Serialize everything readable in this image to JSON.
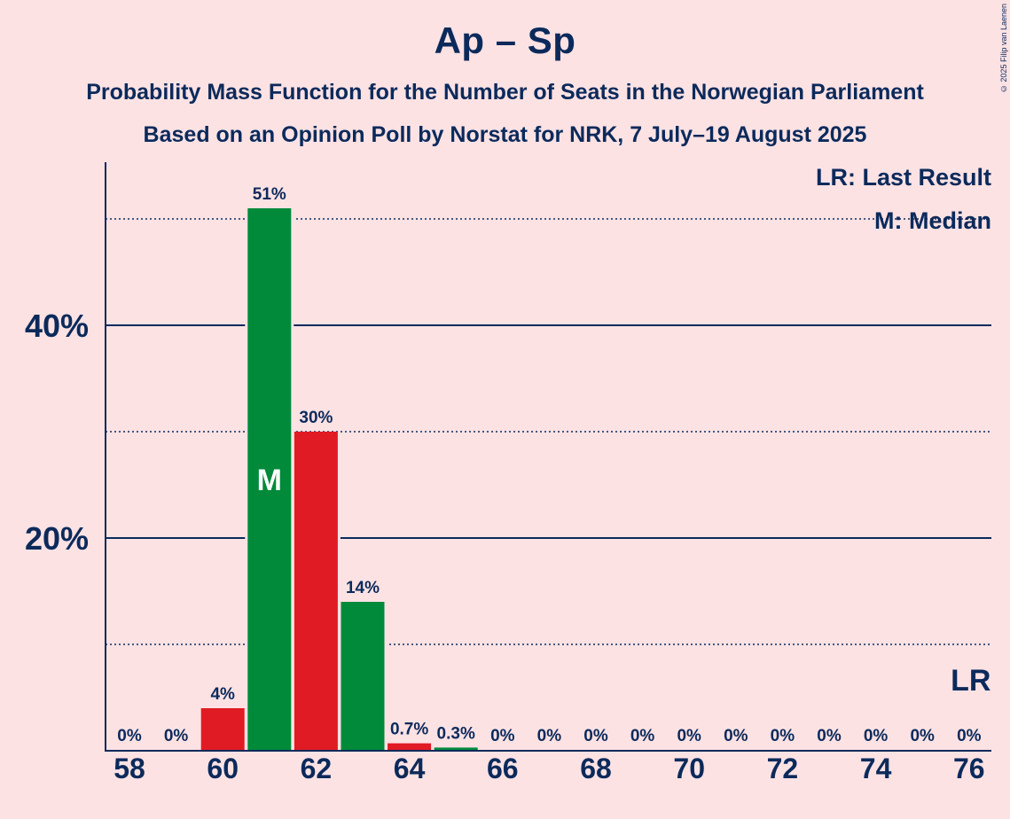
{
  "title": "Ap – Sp",
  "subtitle_1": "Probability Mass Function for the Number of Seats in the Norwegian Parliament",
  "subtitle_2": "Based on an Opinion Poll by Norstat for NRK, 7 July–19 August 2025",
  "copyright": "© 2025 Filip van Laenen",
  "legend": {
    "last_result": "LR: Last Result",
    "median": "M: Median"
  },
  "colors": {
    "background": "#fde2e4",
    "text": "#0b2a5b",
    "green": "#008a3a",
    "red": "#e01b24"
  },
  "chart_data": {
    "type": "bar",
    "title": "Ap – Sp",
    "x": [
      58,
      59,
      60,
      61,
      62,
      63,
      64,
      65,
      66,
      67,
      68,
      69,
      70,
      71,
      72,
      73,
      74,
      75,
      76
    ],
    "values": [
      0,
      0,
      4,
      51,
      30,
      14,
      0.7,
      0.3,
      0,
      0,
      0,
      0,
      0,
      0,
      0,
      0,
      0,
      0,
      0
    ],
    "labels": [
      "0%",
      "0%",
      "4%",
      "51%",
      "30%",
      "14%",
      "0.7%",
      "0.3%",
      "0%",
      "0%",
      "0%",
      "0%",
      "0%",
      "0%",
      "0%",
      "0%",
      "0%",
      "0%",
      "0%"
    ],
    "bar_colors": [
      "red",
      "green",
      "red",
      "green",
      "red",
      "green",
      "red",
      "green",
      "red",
      "green",
      "red",
      "green",
      "red",
      "green",
      "red",
      "green",
      "red",
      "green",
      "red"
    ],
    "x_ticks": [
      "58",
      "60",
      "62",
      "64",
      "66",
      "68",
      "70",
      "72",
      "74",
      "76"
    ],
    "y_ticks": [
      "20%",
      "40%"
    ],
    "ylim": [
      0,
      55
    ],
    "median_seat": 61,
    "median_marker": "M",
    "last_result_seat": 76,
    "last_result_marker": "LR",
    "grid": "solid lines at 20% and 40%, dotted lines at 10%, 30%, 50%"
  }
}
